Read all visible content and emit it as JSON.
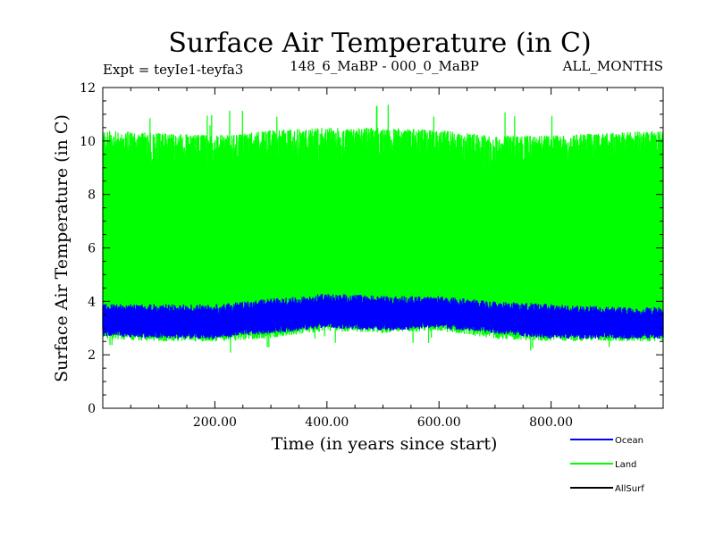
{
  "chart_data": {
    "type": "line",
    "title": "Surface Air Temperature (in C)",
    "experiment": "Expt = teyIe1-teyfa3",
    "comparison": "148_6_MaBP - 000_0_MaBP",
    "months": "ALL_MONTHS",
    "xlabel": "Time (in years since start)",
    "ylabel": "Surface Air Temperature (in C)",
    "xlim": [
      0,
      1000
    ],
    "ylim": [
      0,
      12
    ],
    "x_ticks": [
      200,
      400,
      600,
      800
    ],
    "x_tick_labels": [
      "200.00",
      "400.00",
      "600.00",
      "800.00"
    ],
    "y_ticks": [
      0,
      2,
      4,
      6,
      8,
      10,
      12
    ],
    "y_tick_labels": [
      "0",
      "2",
      "4",
      "6",
      "8",
      "10",
      "12"
    ],
    "series": [
      {
        "name": "Land",
        "color": "#00ff00",
        "description": "annual values oscillating between seasonal minimum and maximum",
        "x": [
          0,
          100,
          200,
          300,
          400,
          500,
          600,
          700,
          800,
          900,
          1000
        ],
        "min": [
          2.6,
          2.5,
          2.5,
          2.6,
          2.9,
          2.8,
          2.9,
          2.6,
          2.5,
          2.5,
          2.5
        ],
        "max": [
          10.4,
          10.3,
          10.2,
          10.4,
          10.5,
          10.5,
          10.4,
          10.2,
          10.2,
          10.3,
          10.4
        ],
        "mean": 6.8
      },
      {
        "name": "Ocean",
        "color": "#0000ff",
        "description": "annual values oscillating between seasonal minimum and maximum",
        "x": [
          0,
          100,
          200,
          300,
          400,
          500,
          600,
          700,
          800,
          900,
          1000
        ],
        "min": [
          2.7,
          2.6,
          2.6,
          2.8,
          3.0,
          2.9,
          3.0,
          2.8,
          2.6,
          2.6,
          2.6
        ],
        "max": [
          3.9,
          3.9,
          3.9,
          4.1,
          4.3,
          4.2,
          4.2,
          4.0,
          3.9,
          3.8,
          3.8
        ],
        "mean": 3.3
      },
      {
        "name": "AllSurf",
        "color": "#000000",
        "description": "hidden behind other series",
        "x": [],
        "min": [],
        "max": []
      }
    ],
    "legend": [
      "Ocean",
      "Land",
      "AllSurf"
    ],
    "legend_position": "bottom-right"
  }
}
